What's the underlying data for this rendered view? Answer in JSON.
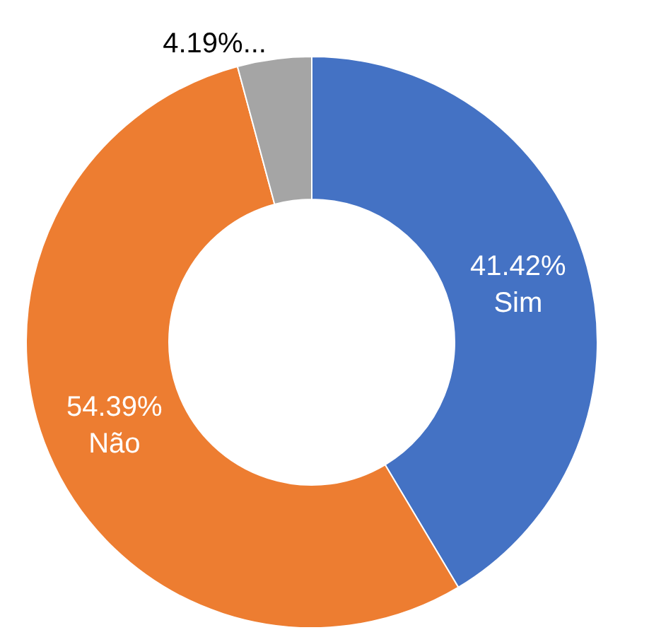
{
  "chart_data": {
    "type": "donut",
    "categories": [
      "Sim",
      "Não",
      null
    ],
    "values": [
      41.42,
      54.39,
      4.19
    ],
    "value_labels": [
      "41.42%",
      "54.39%",
      "4.19%..."
    ],
    "colors": [
      "#4472c4",
      "#ed7d31",
      "#a5a5a5"
    ],
    "legend": false
  }
}
